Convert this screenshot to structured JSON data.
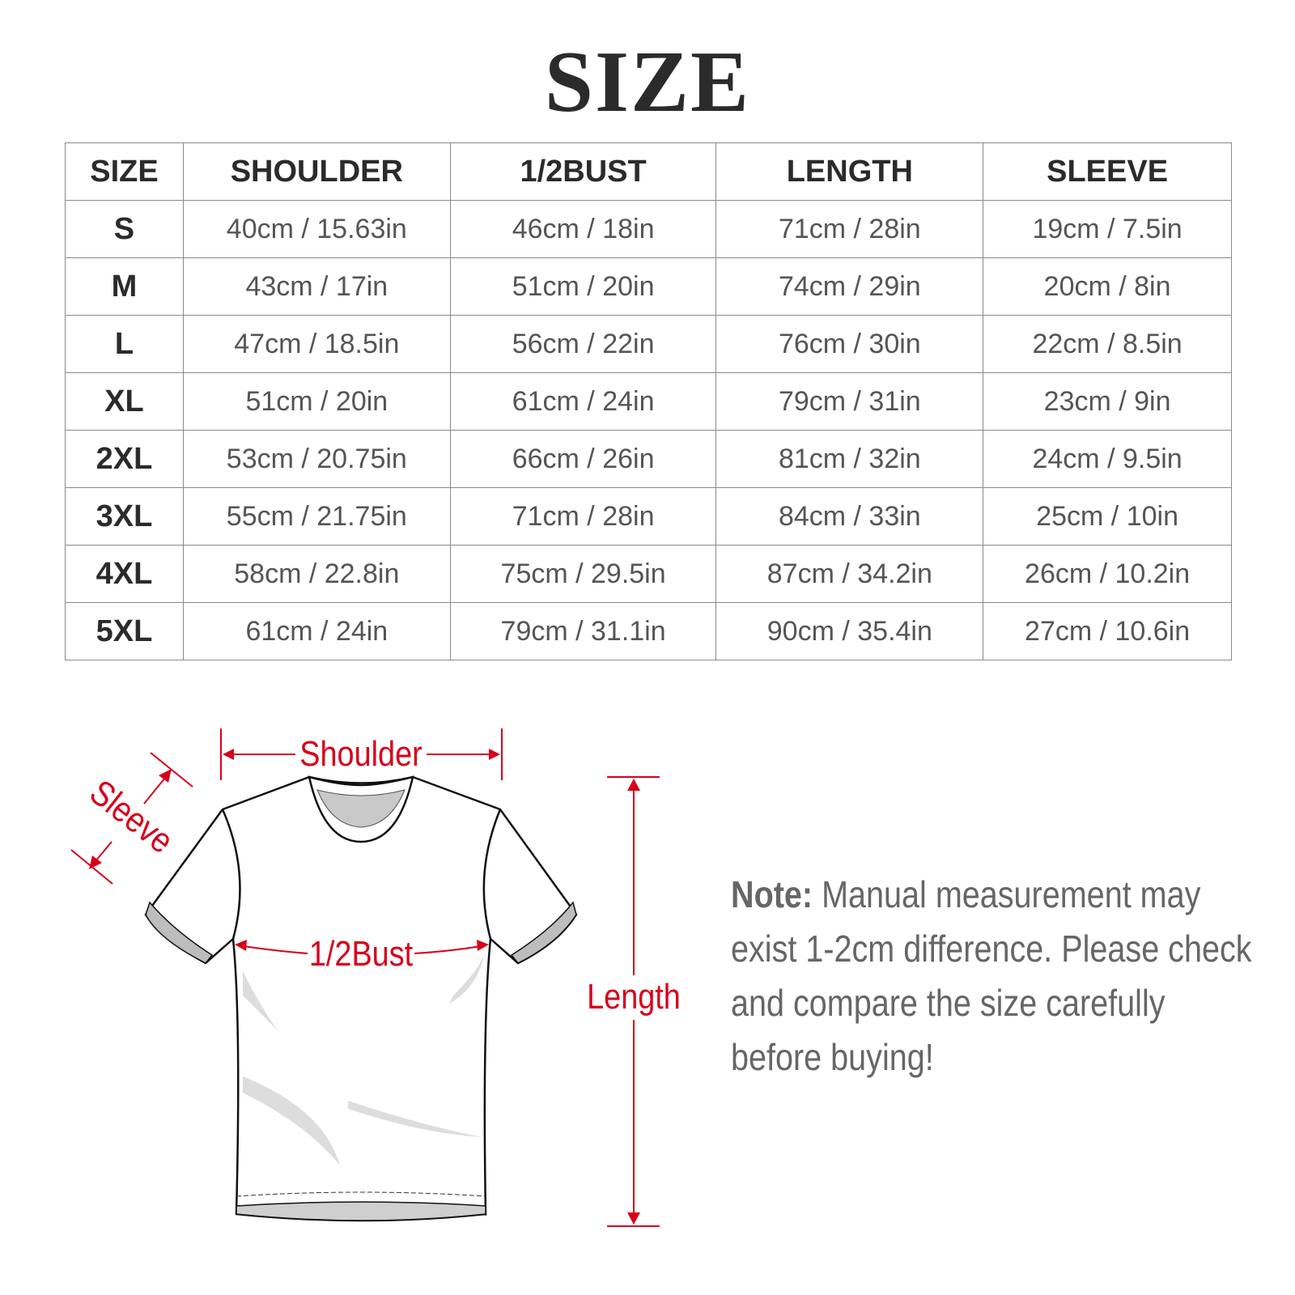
{
  "title": "SIZE",
  "table": {
    "headers": [
      "SIZE",
      "SHOULDER",
      "1/2BUST",
      "LENGTH",
      "SLEEVE"
    ],
    "rows": [
      [
        "S",
        "40cm / 15.63in",
        "46cm / 18in",
        "71cm / 28in",
        "19cm / 7.5in"
      ],
      [
        "M",
        "43cm / 17in",
        "51cm / 20in",
        "74cm / 29in",
        "20cm / 8in"
      ],
      [
        "L",
        "47cm / 18.5in",
        "56cm / 22in",
        "76cm / 30in",
        "22cm / 8.5in"
      ],
      [
        "XL",
        "51cm / 20in",
        "61cm / 24in",
        "79cm / 31in",
        "23cm / 9in"
      ],
      [
        "2XL",
        "53cm / 20.75in",
        "66cm / 26in",
        "81cm / 32in",
        "24cm / 9.5in"
      ],
      [
        "3XL",
        "55cm / 21.75in",
        "71cm / 28in",
        "84cm / 33in",
        "25cm / 10in"
      ],
      [
        "4XL",
        "58cm / 22.8in",
        "75cm / 29.5in",
        "87cm / 34.2in",
        "26cm / 10.2in"
      ],
      [
        "5XL",
        "61cm / 24in",
        "79cm / 31.1in",
        "90cm / 35.4in",
        "27cm / 10.6in"
      ]
    ]
  },
  "diagram": {
    "shoulder_label": "Shoulder",
    "sleeve_label": "Sleeve",
    "bust_label": "1/2Bust",
    "length_label": "Length",
    "accent_color": "#d7001b"
  },
  "note": {
    "prefix": "Note:",
    "text": " Manual measurement may exist 1-2cm difference. Please check and compare the size carefully before buying!"
  }
}
